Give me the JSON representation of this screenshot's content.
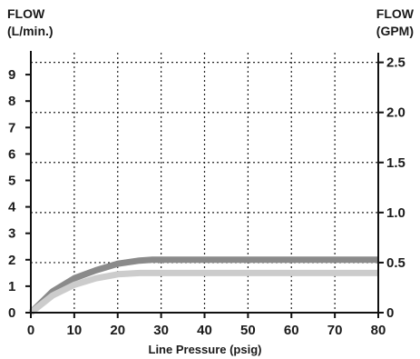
{
  "chart_data": {
    "type": "line",
    "xlabel": "Line Pressure (psig)",
    "ylabel_left_line1": "FLOW",
    "ylabel_left_line2": "(L/min.)",
    "ylabel_right_line1": "FLOW",
    "ylabel_right_line2": "(GPM)",
    "xlim": [
      0,
      80
    ],
    "ylim_left": [
      0,
      9.6
    ],
    "ylim_right": [
      0,
      2.5
    ],
    "x_ticks": [
      0,
      10,
      20,
      30,
      40,
      50,
      60,
      70,
      80
    ],
    "x_tick_labels": [
      "0",
      "10",
      "20",
      "30",
      "40",
      "50",
      "60",
      "70",
      "80"
    ],
    "y_left_ticks": [
      0,
      1,
      2,
      3,
      4,
      5,
      6,
      7,
      8,
      9
    ],
    "y_left_tick_labels": [
      "0",
      "1",
      "2",
      "3",
      "4",
      "5",
      "6",
      "7",
      "8",
      "9"
    ],
    "y_right_ticks": [
      0,
      0.5,
      1.0,
      1.5,
      2.0,
      2.5
    ],
    "y_right_tick_labels": [
      "0",
      "0.5",
      "1.0",
      "1.5",
      "2.0",
      "2.5"
    ],
    "grid": true,
    "series": [
      {
        "color": "#8a8a8a",
        "x": [
          0,
          5,
          10,
          15,
          20,
          25,
          28,
          30,
          40,
          50,
          60,
          70,
          80
        ],
        "y": [
          0,
          0.8,
          1.3,
          1.6,
          1.85,
          1.97,
          2.0,
          2.0,
          2.0,
          2.0,
          2.0,
          2.0,
          2.0
        ]
      },
      {
        "color": "#cccccc",
        "x": [
          0,
          5,
          10,
          15,
          20,
          25,
          28,
          30,
          40,
          50,
          60,
          70,
          80
        ],
        "y": [
          0,
          0.65,
          1.05,
          1.3,
          1.45,
          1.5,
          1.5,
          1.5,
          1.5,
          1.5,
          1.5,
          1.5,
          1.5
        ]
      }
    ]
  }
}
